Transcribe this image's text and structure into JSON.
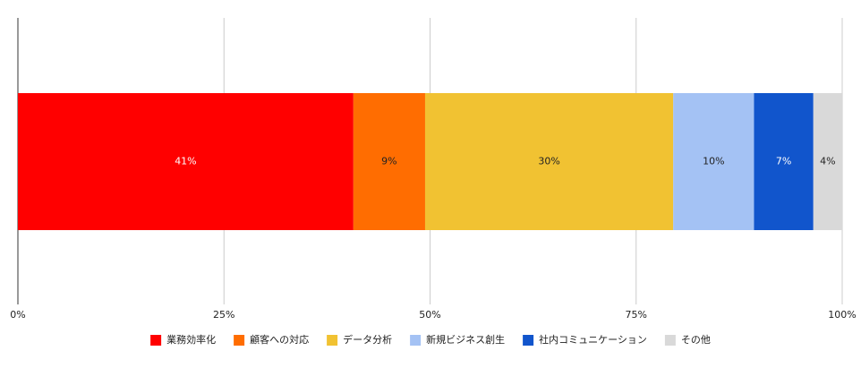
{
  "chart_data": {
    "type": "stacked-bar-horizontal",
    "series": [
      {
        "name": "業務効率化",
        "color": "#ff0000",
        "values": [
          40.7
        ],
        "value_labels": [
          "41%"
        ]
      },
      {
        "name": "顧客への対応",
        "color": "#ff6d01",
        "values": [
          8.7
        ],
        "value_labels": [
          "9%"
        ]
      },
      {
        "name": "データ分析",
        "color": "#f1c232",
        "values": [
          30.1
        ],
        "value_labels": [
          "30%"
        ]
      },
      {
        "name": "新規ビジネス創生",
        "color": "#a4c2f4",
        "values": [
          9.8
        ],
        "value_labels": [
          "10%"
        ]
      },
      {
        "name": "社内コミュニケーション",
        "color": "#1155cc",
        "values": [
          7.2
        ],
        "value_labels": [
          "7%"
        ]
      },
      {
        "name": "その他",
        "color": "#d9d9d9",
        "values": [
          3.5
        ],
        "value_labels": [
          "4%"
        ]
      }
    ],
    "xlim": [
      0,
      100
    ],
    "xticks": [
      {
        "value": 0,
        "label": "0%"
      },
      {
        "value": 25,
        "label": "25%"
      },
      {
        "value": 50,
        "label": "50%"
      },
      {
        "value": 75,
        "label": "75%"
      },
      {
        "value": 100,
        "label": "100%"
      }
    ],
    "grid": true,
    "legend": "bottom"
  }
}
